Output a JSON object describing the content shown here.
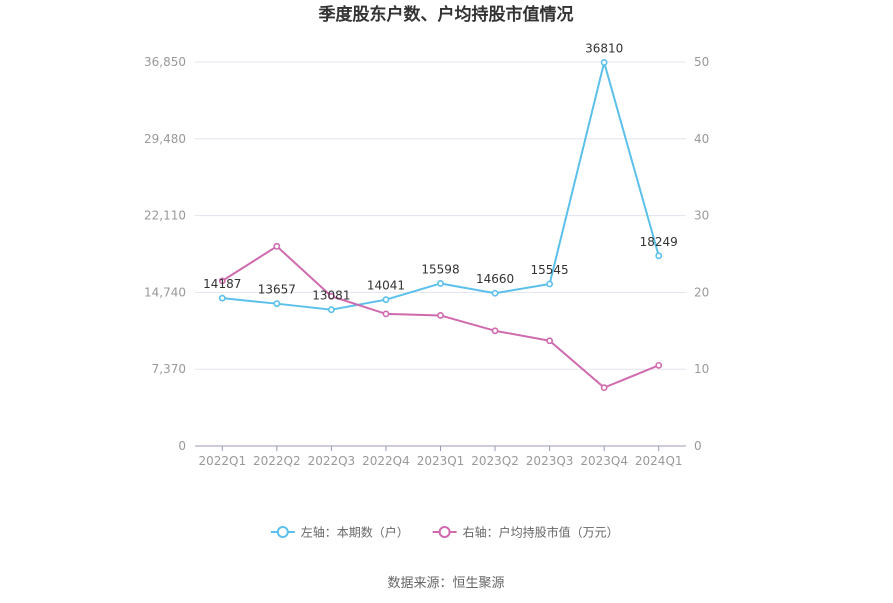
{
  "chart_data": {
    "type": "line",
    "title": "季度股东户数、户均持股市值情况",
    "categories": [
      "2022Q1",
      "2022Q2",
      "2022Q3",
      "2022Q4",
      "2023Q1",
      "2023Q2",
      "2023Q3",
      "2023Q4",
      "2024Q1"
    ],
    "y_left": {
      "ticks": [
        "0",
        "7,370",
        "14,740",
        "22,110",
        "29,480",
        "36,850"
      ],
      "range": [
        0,
        36850
      ]
    },
    "y_right": {
      "ticks": [
        "0",
        "10",
        "20",
        "30",
        "40",
        "50"
      ],
      "range": [
        0,
        50
      ]
    },
    "grid": true,
    "legend_position": "bottom",
    "series": [
      {
        "name": "左轴：本期数（户）",
        "axis": "left",
        "color": "#5bc0eb",
        "values": [
          14187,
          13657,
          13081,
          14041,
          15598,
          14660,
          15545,
          36810,
          18249
        ],
        "labels": [
          "14187",
          "13657",
          "13081",
          "14041",
          "15598",
          "14660",
          "15545",
          "36810",
          "18249"
        ]
      },
      {
        "name": "右轴：户均持股市值（万元）",
        "axis": "right",
        "color": "#d06aae",
        "values": [
          21.5,
          26.0,
          19.5,
          17.2,
          17.0,
          15.0,
          13.7,
          7.6,
          10.5
        ]
      }
    ]
  },
  "source": "数据来源：恒生聚源"
}
